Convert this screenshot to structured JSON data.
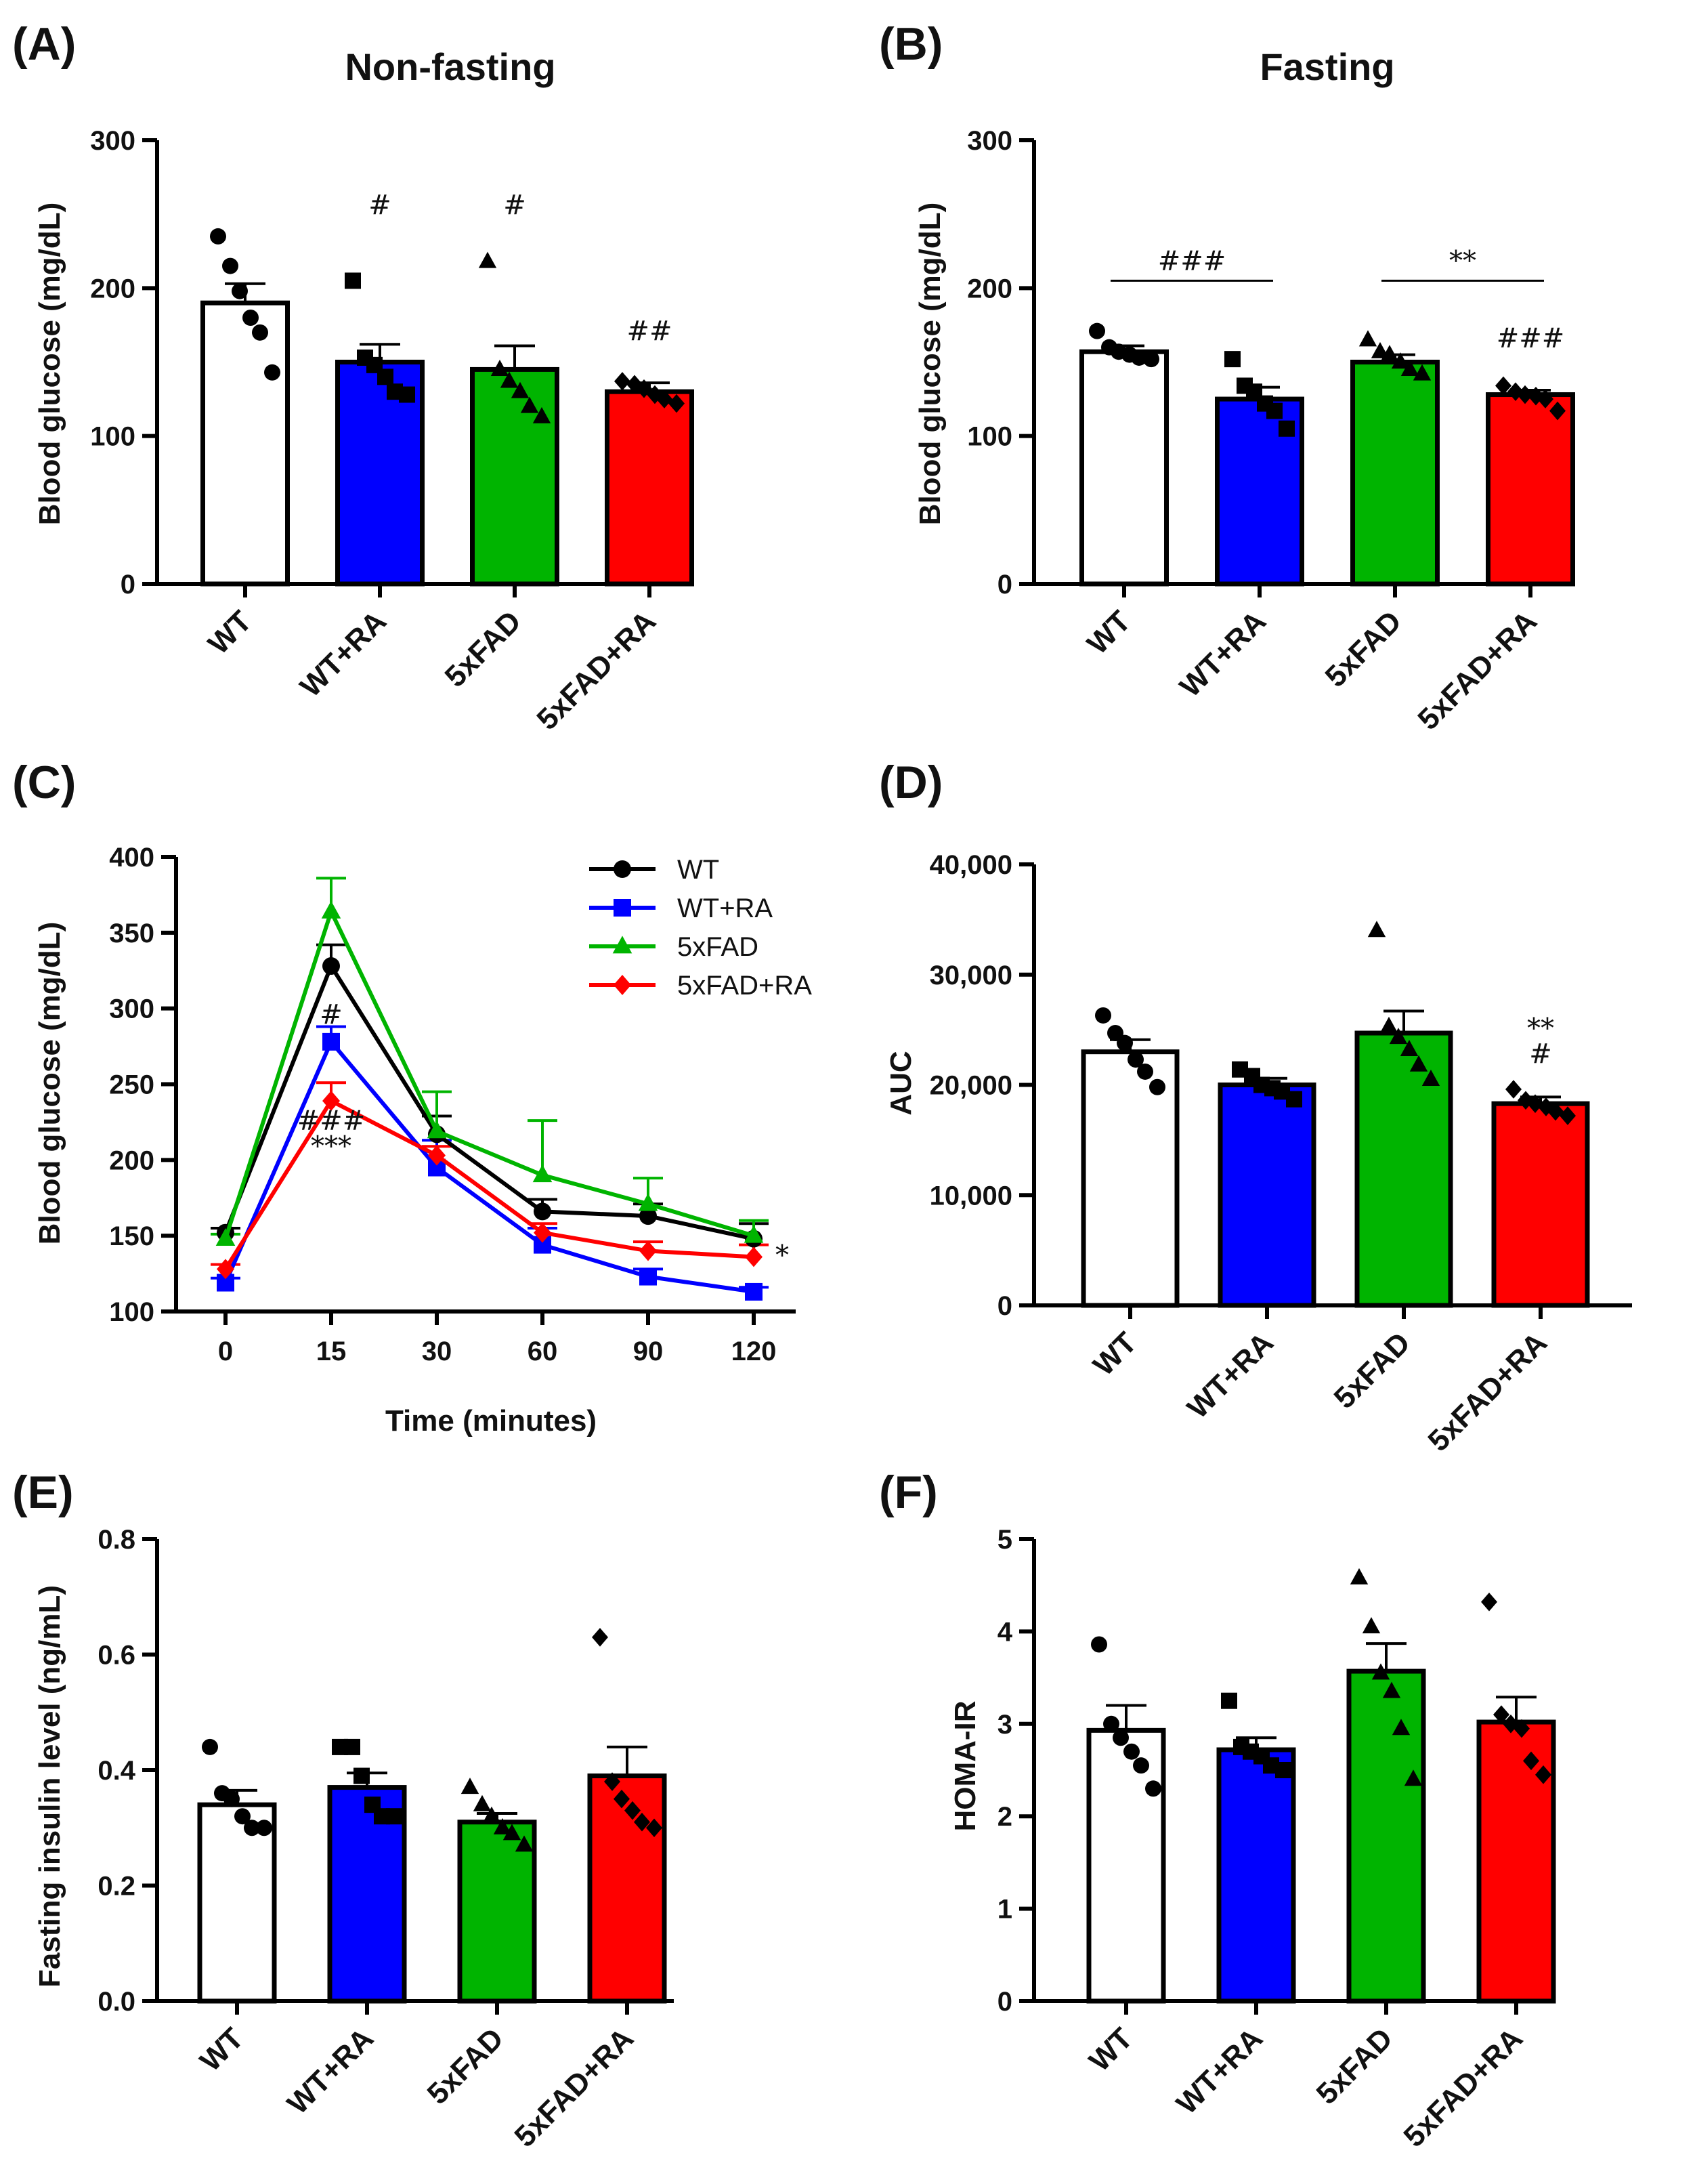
{
  "colors": {
    "wt": "#ffffff",
    "wt_ra": "#0000ff",
    "fad": "#00b400",
    "fad_ra": "#ff0000",
    "axis": "#000000"
  },
  "chart_data": [
    {
      "panel": "(A)",
      "type": "bar",
      "title": "Non-fasting",
      "ylabel": "Blood glucose (mg/dL)",
      "ylim": [
        0,
        300
      ],
      "yticks": [
        0,
        100,
        200,
        300
      ],
      "categories": [
        "WT",
        "WT+RA",
        "5xFAD",
        "5xFAD+RA"
      ],
      "values": [
        190,
        150,
        145,
        130
      ],
      "sem": [
        13,
        12,
        16,
        6
      ],
      "markers": [
        "circle",
        "square",
        "triangle",
        "diamond"
      ],
      "points": [
        [
          235,
          215,
          198,
          180,
          170,
          143
        ],
        [
          205,
          153,
          148,
          140,
          130,
          128
        ],
        [
          218,
          145,
          137,
          130,
          120,
          113
        ],
        [
          137,
          135,
          132,
          128,
          125,
          122
        ]
      ],
      "annotations": [
        {
          "category": 1,
          "label": "#",
          "y": 250
        },
        {
          "category": 2,
          "label": "#",
          "y": 250
        },
        {
          "category": 3,
          "label": "##",
          "y": 165
        }
      ],
      "brackets": []
    },
    {
      "panel": "(B)",
      "type": "bar",
      "title": "Fasting",
      "ylabel": "Blood glucose (mg/dL)",
      "ylim": [
        0,
        300
      ],
      "yticks": [
        0,
        100,
        200,
        300
      ],
      "categories": [
        "WT",
        "WT+RA",
        "5xFAD",
        "5xFAD+RA"
      ],
      "values": [
        157,
        125,
        150,
        128
      ],
      "sem": [
        4,
        8,
        5,
        3
      ],
      "markers": [
        "circle",
        "square",
        "triangle",
        "diamond"
      ],
      "points": [
        [
          171,
          160,
          157,
          155,
          153,
          152
        ],
        [
          152,
          134,
          130,
          122,
          117,
          105
        ],
        [
          165,
          157,
          155,
          150,
          145,
          142
        ],
        [
          134,
          130,
          128,
          127,
          125,
          117
        ]
      ],
      "annotations": [
        {
          "category": 3,
          "label": "###",
          "y": 160
        }
      ],
      "brackets": [
        {
          "from": 0,
          "to": 1,
          "y": 205,
          "label": "###"
        },
        {
          "from": 2,
          "to": 3,
          "y": 205,
          "label": "**"
        }
      ]
    },
    {
      "panel": "(C)",
      "type": "line",
      "ylabel": "Blood glucose (mg/dL)",
      "xlabel": "Time (minutes)",
      "ylim": [
        100,
        400
      ],
      "yticks": [
        100,
        150,
        200,
        250,
        300,
        350,
        400
      ],
      "x": [
        "0",
        "15",
        "30",
        "60",
        "90",
        "120"
      ],
      "series": [
        {
          "name": "WT",
          "marker": "circle",
          "values": [
            152,
            328,
            217,
            166,
            163,
            148
          ],
          "sem": [
            3,
            14,
            12,
            8,
            8,
            10
          ]
        },
        {
          "name": "WT+RA",
          "marker": "square",
          "values": [
            119,
            278,
            195,
            144,
            123,
            113
          ],
          "sem": [
            3,
            10,
            18,
            11,
            5,
            3
          ]
        },
        {
          "name": "5xFAD",
          "marker": "triangle",
          "values": [
            148,
            364,
            219,
            190,
            171,
            150
          ],
          "sem": [
            3,
            22,
            26,
            36,
            17,
            10
          ]
        },
        {
          "name": "5xFAD+RA",
          "marker": "diamond",
          "values": [
            128,
            239,
            203,
            152,
            140,
            136
          ],
          "sem": [
            3,
            12,
            6,
            6,
            6,
            8
          ]
        }
      ],
      "annotations": [
        {
          "x_index": 1,
          "label": "#",
          "y": 290
        },
        {
          "x_index": 1,
          "label": "###",
          "y": 220
        },
        {
          "x_index": 1,
          "label": "***",
          "y": 203
        },
        {
          "x_index": 5,
          "label": "*",
          "y": 131
        }
      ]
    },
    {
      "panel": "(D)",
      "type": "bar",
      "ylabel": "AUC",
      "ylim": [
        0,
        40000
      ],
      "yticks": [
        0,
        10000,
        20000,
        30000,
        40000
      ],
      "ytick_labels": [
        "0",
        "10,000",
        "20,000",
        "30,000",
        "40,000"
      ],
      "categories": [
        "WT",
        "WT+RA",
        "5xFAD",
        "5xFAD+RA"
      ],
      "values": [
        23000,
        20000,
        24700,
        18300
      ],
      "sem": [
        1100,
        600,
        2000,
        600
      ],
      "markers": [
        "circle",
        "square",
        "triangle",
        "diamond"
      ],
      "points": [
        [
          26300,
          24700,
          23800,
          22300,
          21200,
          19800
        ],
        [
          21400,
          20800,
          20000,
          19700,
          19400,
          18700
        ],
        [
          34000,
          25300,
          24300,
          23200,
          21800,
          20500
        ],
        [
          19600,
          18600,
          18300,
          18000,
          17600,
          17200
        ]
      ],
      "annotations": [
        {
          "category": 3,
          "label": "**",
          "y": 24300
        },
        {
          "category": 3,
          "label": "#",
          "y": 22000
        }
      ],
      "brackets": []
    },
    {
      "panel": "(E)",
      "type": "bar",
      "ylabel": "Fasting insulin level (ng/mL)",
      "ylim": [
        0,
        0.8
      ],
      "yticks": [
        0,
        0.2,
        0.4,
        0.6,
        0.8
      ],
      "ytick_labels": [
        "0.0",
        "0.2",
        "0.4",
        "0.6",
        "0.8"
      ],
      "categories": [
        "WT",
        "WT+RA",
        "5xFAD",
        "5xFAD+RA"
      ],
      "values": [
        0.34,
        0.37,
        0.31,
        0.39
      ],
      "sem": [
        0.025,
        0.025,
        0.015,
        0.05
      ],
      "markers": [
        "circle",
        "square",
        "triangle",
        "diamond"
      ],
      "points": [
        [
          0.44,
          0.36,
          0.35,
          0.32,
          0.3,
          0.3
        ],
        [
          0.44,
          0.44,
          0.39,
          0.34,
          0.32,
          0.32
        ],
        [
          0.37,
          0.34,
          0.32,
          0.3,
          0.29,
          0.27
        ],
        [
          0.63,
          0.38,
          0.35,
          0.33,
          0.31,
          0.3
        ]
      ],
      "annotations": [],
      "brackets": []
    },
    {
      "panel": "(F)",
      "type": "bar",
      "ylabel": "HOMA-IR",
      "ylim": [
        0,
        5
      ],
      "yticks": [
        0,
        1,
        2,
        3,
        4,
        5
      ],
      "categories": [
        "WT",
        "WT+RA",
        "5xFAD",
        "5xFAD+RA"
      ],
      "values": [
        2.93,
        2.72,
        3.57,
        3.02
      ],
      "sem": [
        0.27,
        0.13,
        0.3,
        0.27
      ],
      "markers": [
        "circle",
        "square",
        "triangle",
        "diamond"
      ],
      "points": [
        [
          3.86,
          3.0,
          2.85,
          2.7,
          2.55,
          2.3
        ],
        [
          3.25,
          2.75,
          2.7,
          2.65,
          2.55,
          2.5
        ],
        [
          4.58,
          4.05,
          3.55,
          3.35,
          2.95,
          2.4
        ],
        [
          4.32,
          3.1,
          3.0,
          2.95,
          2.6,
          2.45
        ]
      ],
      "annotations": [],
      "brackets": []
    }
  ]
}
